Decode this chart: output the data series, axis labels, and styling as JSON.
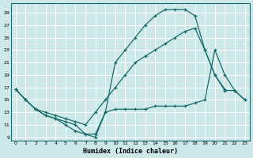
{
  "background_color": "#cce8e8",
  "grid_color": "#ffffff",
  "line_color": "#1a6b6b",
  "xlabel": "Humidex (Indice chaleur)",
  "xlim": [
    -0.5,
    23.5
  ],
  "ylim": [
    8.5,
    30.5
  ],
  "yticks": [
    9,
    11,
    13,
    15,
    17,
    19,
    21,
    23,
    25,
    27,
    29
  ],
  "xticks": [
    0,
    1,
    2,
    3,
    4,
    5,
    6,
    7,
    8,
    9,
    10,
    11,
    12,
    13,
    14,
    15,
    16,
    17,
    18,
    19,
    20,
    21,
    22,
    23
  ],
  "s1x": [
    0,
    1,
    2,
    3,
    4,
    5,
    6,
    7,
    8,
    9,
    10,
    11,
    12,
    13,
    14,
    15,
    16,
    17,
    18,
    19,
    20,
    21
  ],
  "s1y": [
    16.7,
    15,
    13.5,
    12.5,
    12,
    11,
    10,
    9.5,
    9,
    13,
    21,
    23,
    25,
    27,
    28.5,
    29.5,
    29.5,
    29.5,
    28.5,
    23,
    19,
    16.7
  ],
  "s2x": [
    0,
    1,
    2,
    3,
    4,
    5,
    6,
    7,
    8,
    9,
    10,
    11,
    12,
    13,
    14,
    15,
    16,
    17,
    18,
    19,
    20,
    21,
    22,
    23
  ],
  "s2y": [
    16.7,
    15,
    13.5,
    13,
    12.5,
    12,
    11.5,
    11,
    13,
    15,
    17,
    19,
    21,
    22,
    23,
    24,
    25,
    26,
    26.5,
    23,
    19,
    16.5,
    16.5,
    15
  ],
  "s3x": [
    0,
    1,
    2,
    3,
    4,
    5,
    6,
    7,
    8,
    9,
    10,
    11,
    12,
    13,
    14,
    15,
    16,
    17,
    18,
    19,
    20,
    21,
    22,
    23
  ],
  "s3y": [
    16.7,
    15,
    13.5,
    12.5,
    12,
    11.5,
    11,
    9.5,
    9.5,
    13,
    13.5,
    13.5,
    13.5,
    13.5,
    14,
    14,
    14,
    14,
    14.5,
    15,
    23,
    19,
    16.5,
    15
  ]
}
